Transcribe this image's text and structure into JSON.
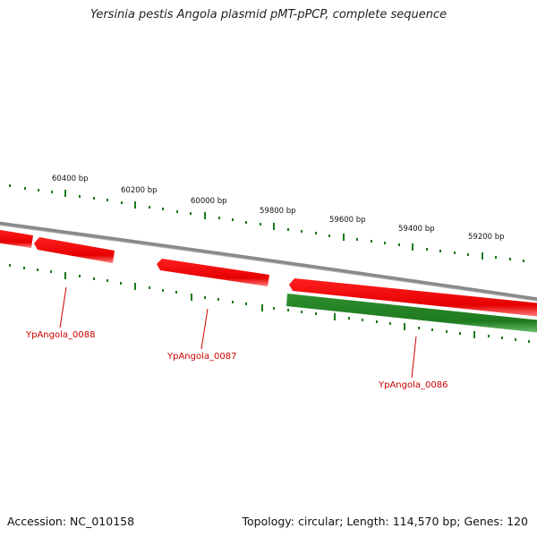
{
  "title": "Yersinia pestis Angola plasmid pMT-pPCP, complete sequence",
  "footer": {
    "accession": "Accession: NC_010158",
    "summary": "Topology: circular; Length: 114,570 bp; Genes: 120"
  },
  "bp_ticks": [
    {
      "label": "60400 bp"
    },
    {
      "label": "60200 bp"
    },
    {
      "label": "60000 bp"
    },
    {
      "label": "59800 bp"
    },
    {
      "label": "59600 bp"
    },
    {
      "label": "59400 bp"
    },
    {
      "label": "59200 bp"
    }
  ],
  "genes": [
    {
      "name": "YpAngola_0088"
    },
    {
      "name": "YpAngola_0087"
    },
    {
      "name": "YpAngola_0086"
    }
  ],
  "colors": {
    "forward_gene": "#ff0000",
    "reverse_gene": "#2a8a2a",
    "backbone": "#8a8a8a",
    "tick": "#1a7a1a",
    "label": "#cc0000"
  }
}
